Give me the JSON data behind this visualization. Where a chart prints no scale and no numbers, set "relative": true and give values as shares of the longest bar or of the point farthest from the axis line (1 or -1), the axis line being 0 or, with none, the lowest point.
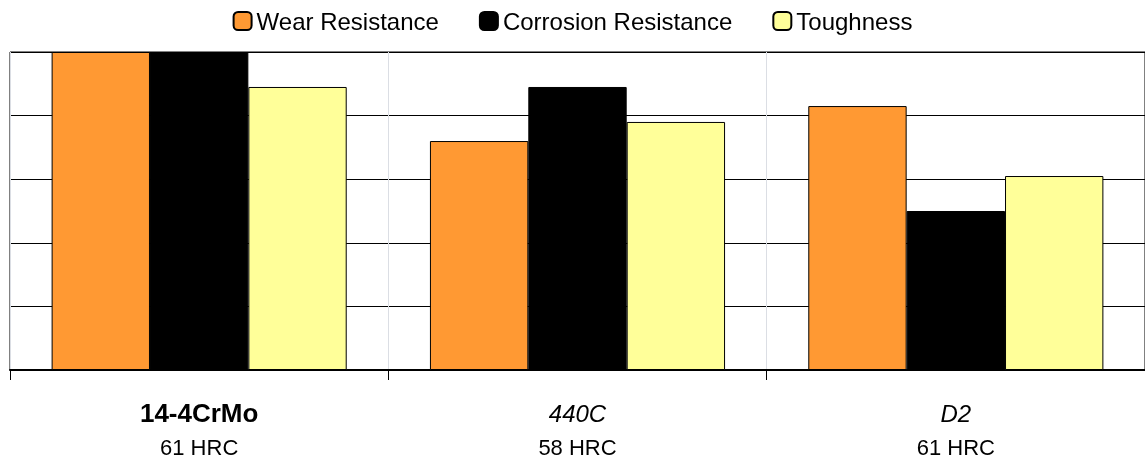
{
  "chart_data": {
    "type": "bar",
    "relative": true,
    "categories": [
      "14-4CrMo\n61 HRC",
      "440C\n58 HRC",
      "D2\n61 HRC"
    ],
    "series": [
      {
        "name": "Wear Resistance",
        "color": "#ff9933",
        "values": [
          1,
          0.72,
          0.83
        ]
      },
      {
        "name": "Corrosion Resistance",
        "color": "#000000",
        "values": [
          1,
          0.89,
          0.5
        ]
      },
      {
        "name": "Toughness",
        "color": "#ffff99",
        "values": [
          0.89,
          0.78,
          0.61
        ]
      }
    ],
    "grid": true,
    "legend": "top"
  }
}
